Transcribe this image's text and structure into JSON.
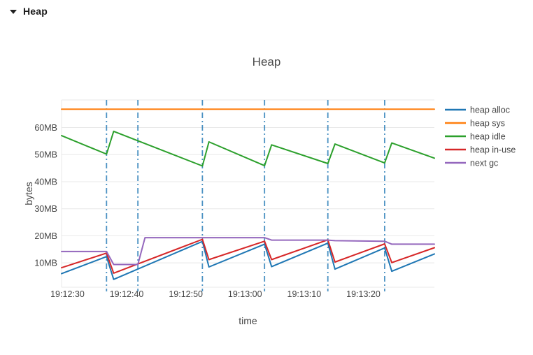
{
  "header": {
    "label": "Heap",
    "icons": {
      "collapse": "caret-down-icon"
    }
  },
  "chart_data": {
    "type": "line",
    "title": "Heap",
    "xlabel": "time",
    "ylabel": "bytes",
    "xlim": [
      29,
      92
    ],
    "ylim": [
      1,
      70.2
    ],
    "grid": "horizontal",
    "legend_position": "right",
    "background": "#ffffff",
    "grid_color": "#e8e8e8",
    "text_color": "#444444",
    "title_color": "#4c4c4c",
    "x_ticks": [
      {
        "t": 30,
        "label": "19:12:30"
      },
      {
        "t": 40,
        "label": "19:12:40"
      },
      {
        "t": 50,
        "label": "19:12:50"
      },
      {
        "t": 60,
        "label": "19:13:00"
      },
      {
        "t": 70,
        "label": "19:13:10"
      },
      {
        "t": 80,
        "label": "19:13:20"
      }
    ],
    "y_ticks": [
      {
        "v": 10,
        "label": "10MB"
      },
      {
        "v": 20,
        "label": "20MB"
      },
      {
        "v": 30,
        "label": "30MB"
      },
      {
        "v": 40,
        "label": "40MB"
      },
      {
        "v": 50,
        "label": "50MB"
      },
      {
        "v": 60,
        "label": "60MB"
      }
    ],
    "gc_lines": {
      "times": [
        36.6,
        41.9,
        52.8,
        63.3,
        74.0,
        83.6
      ],
      "color": "#1f77b4",
      "opacity": 0.8,
      "style": "dashdot"
    },
    "series": [
      {
        "name": "heap alloc",
        "color": "#1f77b4",
        "points": [
          [
            29,
            6.0
          ],
          [
            36.6,
            12.3
          ],
          [
            37.8,
            3.9
          ],
          [
            52.8,
            17.9
          ],
          [
            53.9,
            8.5
          ],
          [
            63.3,
            16.9
          ],
          [
            64.5,
            8.6
          ],
          [
            74,
            17.3
          ],
          [
            75.2,
            7.7
          ],
          [
            83.6,
            15.5
          ],
          [
            84.8,
            6.9
          ],
          [
            92,
            13.3
          ]
        ]
      },
      {
        "name": "heap sys",
        "color": "#ff7f0e",
        "points": [
          [
            29,
            66.8
          ],
          [
            92,
            66.8
          ]
        ]
      },
      {
        "name": "heap idle",
        "color": "#2ca02c",
        "points": [
          [
            29,
            57.0
          ],
          [
            36.6,
            50.2
          ],
          [
            37.8,
            58.6
          ],
          [
            52.8,
            45.8
          ],
          [
            53.9,
            54.7
          ],
          [
            63.3,
            45.9
          ],
          [
            64.5,
            53.6
          ],
          [
            74,
            46.7
          ],
          [
            75.2,
            53.9
          ],
          [
            83.6,
            46.9
          ],
          [
            84.8,
            54.3
          ],
          [
            92,
            48.7
          ]
        ]
      },
      {
        "name": "heap in-use",
        "color": "#d62728",
        "points": [
          [
            29,
            8.2
          ],
          [
            36.6,
            13.6
          ],
          [
            37.8,
            6.2
          ],
          [
            52.8,
            18.7
          ],
          [
            53.9,
            11.2
          ],
          [
            63.3,
            18.0
          ],
          [
            64.5,
            11.2
          ],
          [
            74,
            18.5
          ],
          [
            75.2,
            10.3
          ],
          [
            83.6,
            17.0
          ],
          [
            84.8,
            10.1
          ],
          [
            92,
            15.6
          ]
        ]
      },
      {
        "name": "next gc",
        "color": "#9467bd",
        "points": [
          [
            29,
            14.2
          ],
          [
            36.6,
            14.2
          ],
          [
            37.8,
            9.4
          ],
          [
            41.9,
            9.4
          ],
          [
            43.1,
            19.3
          ],
          [
            63.3,
            19.3
          ],
          [
            64.5,
            18.4
          ],
          [
            74,
            18.4
          ],
          [
            75.2,
            18.2
          ],
          [
            83.6,
            18.0
          ],
          [
            84.8,
            16.9
          ],
          [
            92,
            16.9
          ]
        ]
      }
    ]
  }
}
